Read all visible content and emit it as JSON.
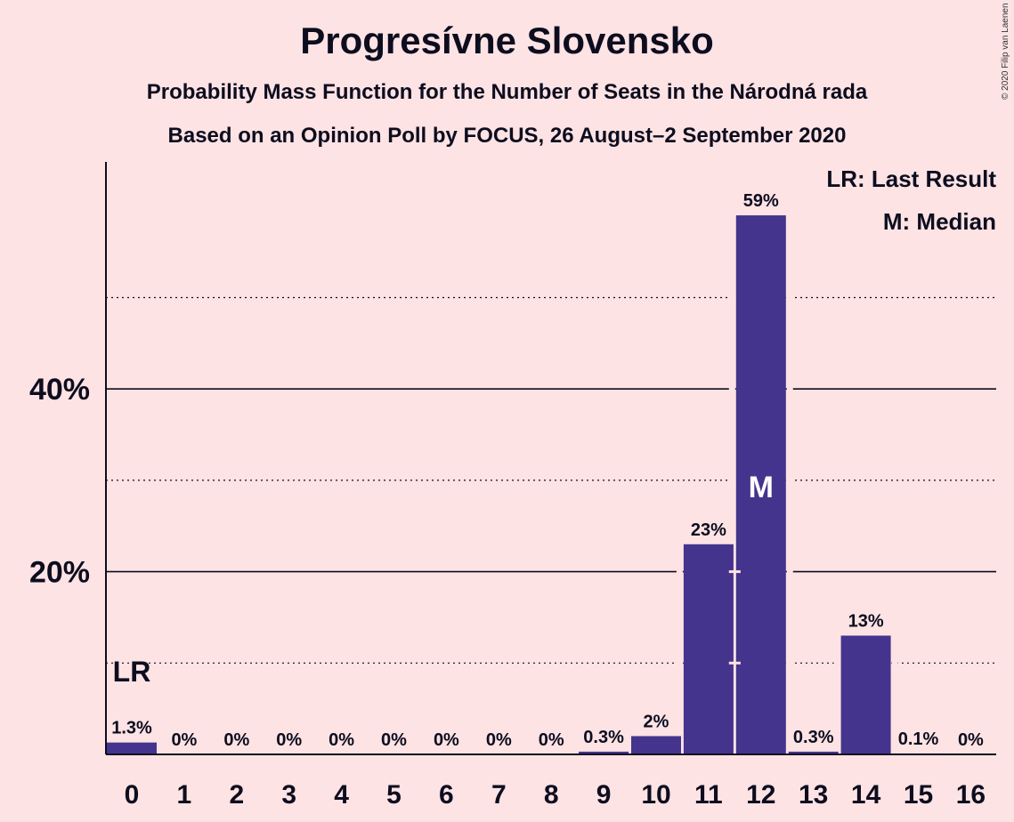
{
  "header": {
    "title": "Progresívne Slovensko",
    "subtitle1": "Probability Mass Function for the Number of Seats in the Národná rada",
    "subtitle2": "Based on an Opinion Poll by FOCUS, 26 August–2 September 2020",
    "copyright": "© 2020 Filip van Laenen"
  },
  "legend": {
    "last_result": "LR: Last Result",
    "median": "M: Median"
  },
  "colors": {
    "background": "#fde3e4",
    "bar": "#45348d",
    "text": "#0d0d1f"
  },
  "chart_data": {
    "type": "bar",
    "categories": [
      "0",
      "1",
      "2",
      "3",
      "4",
      "5",
      "6",
      "7",
      "8",
      "9",
      "10",
      "11",
      "12",
      "13",
      "14",
      "15",
      "16"
    ],
    "values": [
      1.3,
      0,
      0,
      0,
      0,
      0,
      0,
      0,
      0,
      0.3,
      2,
      23,
      59,
      0.3,
      13,
      0.1,
      0
    ],
    "data_labels": [
      "1.3%",
      "0%",
      "0%",
      "0%",
      "0%",
      "0%",
      "0%",
      "0%",
      "0%",
      "0.3%",
      "2%",
      "23%",
      "59%",
      "0.3%",
      "13%",
      "0.1%",
      "0%"
    ],
    "ytick_labels": [
      {
        "value": 20,
        "label": "20%"
      },
      {
        "value": 40,
        "label": "40%"
      }
    ],
    "major_gridlines": [
      20,
      40
    ],
    "minor_gridlines": [
      10,
      30,
      50
    ],
    "ylim": [
      0,
      64.5
    ],
    "last_result": {
      "seat": "0",
      "label": "LR"
    },
    "median": {
      "seat": "12",
      "label": "M"
    }
  }
}
